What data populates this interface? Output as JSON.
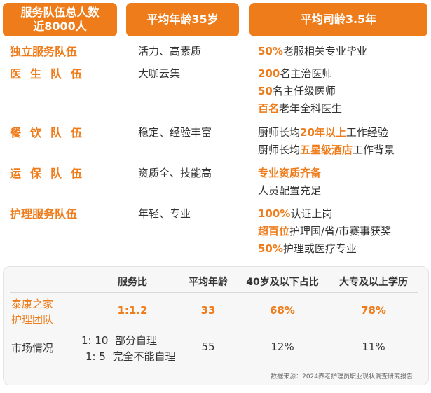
{
  "header": {
    "team_line1": "服务队伍总人数",
    "team_line2": "近8000人",
    "avg_age": "平均年龄35岁",
    "avg_tenure": "平均司龄3.5年"
  },
  "rows": {
    "independent": {
      "title": "独立服务队伍",
      "mid": "活力、高素质",
      "r1_hl": "50%",
      "r1_rest": "老服相关专业毕业"
    },
    "doctors": {
      "title": "医生队伍",
      "mid": "大咖云集",
      "r1_hl": "200",
      "r1_rest": "名主治医师",
      "r2_hl": "50",
      "r2_rest": "名主任级医师",
      "r3_hl": "百名",
      "r3_rest": "老年全科医生"
    },
    "catering": {
      "title": "餐饮队伍",
      "mid": "稳定、经验丰富",
      "r1_pre": "厨师长均",
      "r1_hl": "20年以上",
      "r1_post": "工作经验",
      "r2_pre": "厨师长均",
      "r2_hl": "五星级酒店",
      "r2_post": "工作背景"
    },
    "maintenance": {
      "title": "运保队伍",
      "mid": "资质全、技能高",
      "r1_hl": "专业资质齐备",
      "r2": "人员配置充足"
    },
    "nursing": {
      "title": "护理服务队伍",
      "mid": "年轻、专业",
      "r1_hl": "100%",
      "r1_rest": "认证上岗",
      "r2_hl": "超百位",
      "r2_rest": "护理国/省/市赛事获奖",
      "r3_hl": "50%",
      "r3_rest": "护理或医疗专业"
    }
  },
  "comparison": {
    "headers": [
      "服务比",
      "平均年龄",
      "40岁及以下占比",
      "大专及以上学历"
    ],
    "taikang": {
      "label_line1": "泰康之家",
      "label_line2": "护理团队",
      "ratio": "1:1.2",
      "avg_age": "33",
      "under40": "68%",
      "college": "78%"
    },
    "market": {
      "label": "市场情况",
      "ratio1": "1: 10",
      "ratio1_desc": "部分自理",
      "ratio2": "1: 5",
      "ratio2_desc": "完全不能自理",
      "avg_age": "55",
      "under40": "12%",
      "college": "11%"
    },
    "source": "数据来源：2024养老护理员职业现状调查研究报告"
  }
}
